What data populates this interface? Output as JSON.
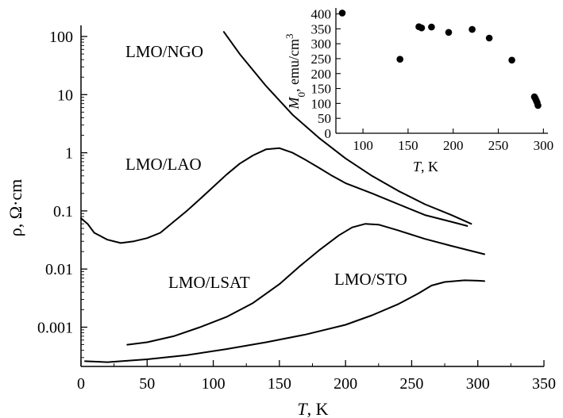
{
  "chart_data": [
    {
      "type": "line",
      "xlabel": "T, K",
      "ylabel": "ρ, Ω·cm",
      "xlim": [
        0,
        350
      ],
      "ylim": [
        0.0002,
        150
      ],
      "yscale": "log",
      "x_ticks": [
        "0",
        "50",
        "100",
        "150",
        "200",
        "250",
        "300",
        "350"
      ],
      "y_ticks": [
        "100",
        "10",
        "1",
        "0.1",
        "0.01",
        "0.001"
      ],
      "grid": false,
      "series": [
        {
          "name": "LMO/NGO",
          "x": [
            108,
            120,
            140,
            160,
            180,
            200,
            220,
            240,
            260,
            280,
            295
          ],
          "y": [
            120,
            50,
            14,
            4.5,
            1.8,
            0.8,
            0.4,
            0.22,
            0.13,
            0.085,
            0.06
          ]
        },
        {
          "name": "LMO/LAO",
          "x": [
            0,
            5,
            10,
            20,
            30,
            40,
            50,
            60,
            70,
            80,
            90,
            100,
            110,
            120,
            130,
            140,
            150,
            160,
            170,
            180,
            190,
            200,
            220,
            240,
            260,
            280,
            292
          ],
          "y": [
            0.075,
            0.06,
            0.042,
            0.032,
            0.028,
            0.03,
            0.034,
            0.042,
            0.065,
            0.1,
            0.16,
            0.26,
            0.42,
            0.65,
            0.9,
            1.15,
            1.2,
            1.0,
            0.75,
            0.55,
            0.4,
            0.3,
            0.2,
            0.13,
            0.085,
            0.065,
            0.055
          ]
        },
        {
          "name": "LMO/LSAT",
          "x": [
            35,
            50,
            70,
            90,
            110,
            130,
            150,
            165,
            180,
            195,
            205,
            215,
            225,
            240,
            260,
            280,
            305
          ],
          "y": [
            0.0005,
            0.00055,
            0.0007,
            0.001,
            0.0015,
            0.0026,
            0.0055,
            0.011,
            0.021,
            0.038,
            0.052,
            0.06,
            0.058,
            0.046,
            0.033,
            0.025,
            0.018
          ]
        },
        {
          "name": "LMO/STO",
          "x": [
            3,
            20,
            50,
            80,
            110,
            140,
            170,
            200,
            220,
            240,
            255,
            265,
            275,
            290,
            300,
            305
          ],
          "y": [
            0.00026,
            0.00025,
            0.00028,
            0.00033,
            0.00042,
            0.00055,
            0.00075,
            0.0011,
            0.0016,
            0.0025,
            0.0038,
            0.0052,
            0.006,
            0.0064,
            0.0063,
            0.0062
          ]
        }
      ]
    },
    {
      "type": "scatter",
      "xlabel": "T, K",
      "ylabel": "M0, emu/cm3",
      "xlim": [
        70,
        305
      ],
      "ylim": [
        0,
        420
      ],
      "x_ticks": [
        "100",
        "150",
        "200",
        "250",
        "300"
      ],
      "y_ticks": [
        "0",
        "50",
        "100",
        "150",
        "200",
        "250",
        "300",
        "350",
        "400"
      ],
      "grid": false,
      "x": [
        77,
        141,
        162,
        165,
        176,
        195,
        221,
        240,
        265,
        290,
        291,
        292,
        293,
        294
      ],
      "y": [
        403,
        248,
        357,
        353,
        356,
        338,
        348,
        319,
        245,
        122,
        117,
        110,
        103,
        93
      ]
    }
  ],
  "labels": {
    "ngo": "LMO/NGO",
    "lao": "LMO/LAO",
    "lsat": "LMO/LSAT",
    "sto": "LMO/STO"
  },
  "axis": {
    "main_x_italic": "T",
    "main_x_rest": ", K",
    "main_y": "ρ, Ω·cm",
    "inset_x_italic": "T",
    "inset_x_rest": ", K",
    "inset_y_italic": "M",
    "inset_y_sub": "0",
    "inset_y_rest": ", emu/cm",
    "inset_y_sup": "3"
  }
}
